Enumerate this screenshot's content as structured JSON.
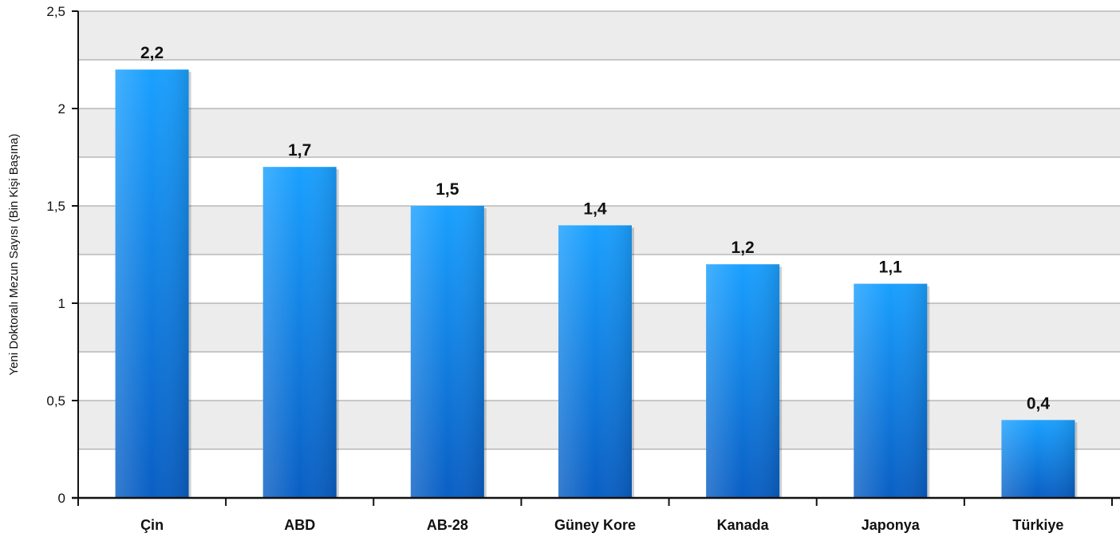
{
  "chart_data": {
    "type": "bar",
    "title": "",
    "xlabel": "",
    "ylabel": "Yeni Doktoralı Mezun Sayısı (Bin Kişi Başına)",
    "categories": [
      "Çin",
      "ABD",
      "AB-28",
      "Güney Kore",
      "Kanada",
      "Japonya",
      "Türkiye"
    ],
    "values": [
      2.2,
      1.7,
      1.5,
      1.4,
      1.2,
      1.1,
      0.4
    ],
    "data_labels": [
      "2,2",
      "1,7",
      "1,5",
      "1,4",
      "1,2",
      "1,1",
      "0,4"
    ],
    "ylim": [
      0,
      2.5
    ],
    "yticks": [
      0,
      0.5,
      1,
      1.5,
      2,
      2.5
    ],
    "ytick_labels": [
      "0",
      "0,5",
      "1",
      "1,5",
      "2",
      "2,5"
    ],
    "grid": true,
    "bar_color": "#1a8cf0",
    "band_color": "#ececec"
  }
}
